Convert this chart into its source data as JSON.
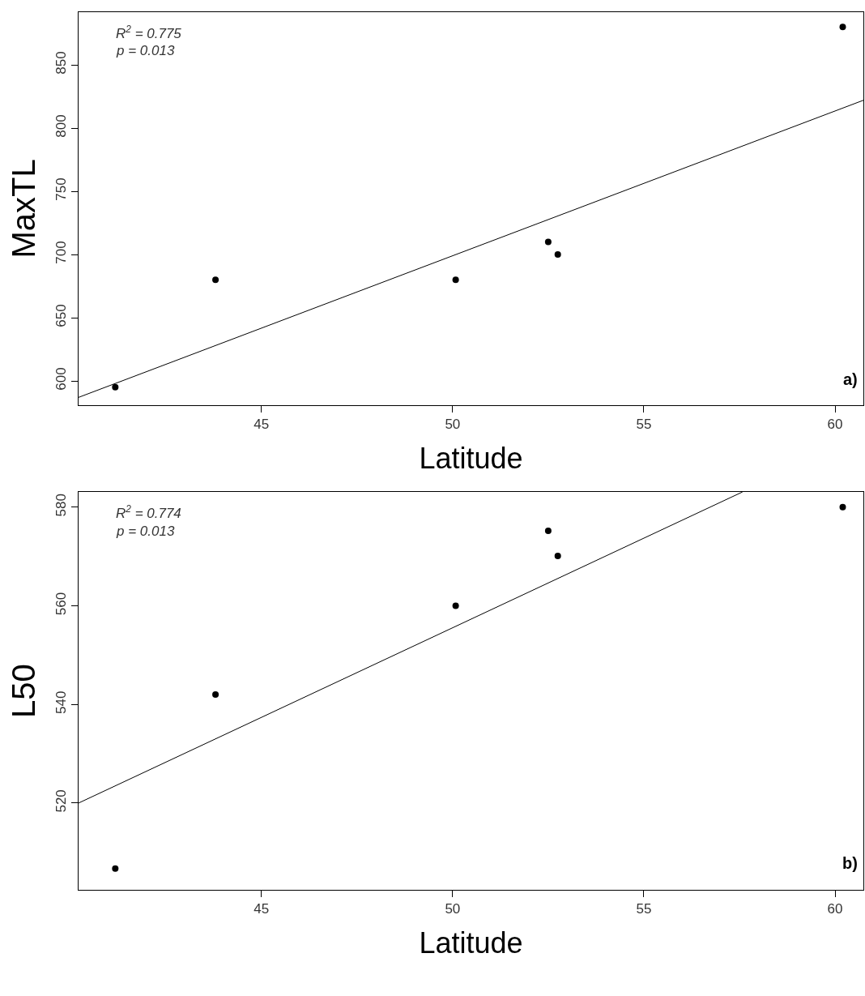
{
  "chart_data": [
    {
      "type": "scatter",
      "xlabel": "Latitude",
      "ylabel": "MaxTL",
      "annotations": [
        "R$^{2}$ = 0.775",
        "p = 0.013",
        "a)"
      ],
      "xlim": [
        40.22,
        60.74
      ],
      "xticks": [
        45,
        50,
        55,
        60
      ],
      "ylim": [
        580.8,
        891.7
      ],
      "yticks": [
        600,
        650,
        700,
        750,
        800,
        850
      ],
      "series": [
        {
          "color": "#000000",
          "marker": "circle",
          "x": [
            41.18,
            43.8,
            50.08,
            52.5,
            52.75,
            60.2
          ],
          "values": [
            595,
            680,
            680,
            710,
            700,
            880
          ]
        },
        {
          "type": "line",
          "marker": "none",
          "color": "#000000",
          "x": [
            40.22,
            60.74
          ],
          "values": [
            587,
            822
          ]
        }
      ]
    },
    {
      "type": "scatter",
      "xlabel": "Latitude",
      "ylabel": "L50",
      "annotations": [
        "R$^{2}$ = 0.774",
        "p = 0.013",
        "b)"
      ],
      "xlim": [
        40.22,
        60.74
      ],
      "xticks": [
        45,
        50,
        55,
        60
      ],
      "ylim": [
        502.4,
        583.1
      ],
      "yticks": [
        520,
        540,
        560,
        580
      ],
      "series": [
        {
          "color": "#000000",
          "marker": "circle",
          "x": [
            41.18,
            43.8,
            50.08,
            52.5,
            52.75,
            60.2
          ],
          "values": [
            506.7,
            542,
            560,
            575.2,
            570.1,
            580
          ]
        },
        {
          "type": "line",
          "marker": "none",
          "color": "#000000",
          "x": [
            40.22,
            57.58
          ],
          "values": [
            520,
            583.1
          ]
        }
      ]
    }
  ]
}
